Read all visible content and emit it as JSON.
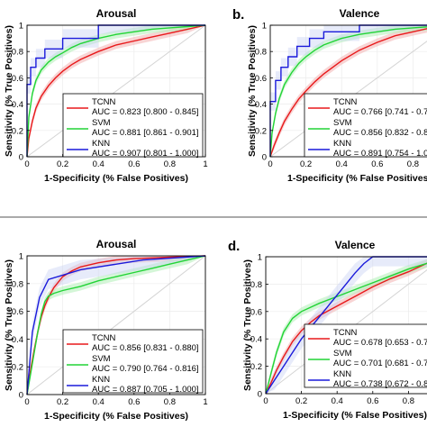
{
  "figure": {
    "colors": {
      "TCNN": "#e8191b",
      "SVM": "#22d436",
      "KNN": "#1a1adb",
      "TCNN_band": "#f4b7b7",
      "SVM_band": "#b7f0bd",
      "KNN_band": "#c9d2f5",
      "chance": "#d4d4d4"
    }
  },
  "chart_data": [
    {
      "type": "line",
      "panel_label": "",
      "title": "Arousal",
      "xlabel": "1-Specificity (% False Positives)",
      "ylabel": "Sensitivity (% True Positives)",
      "xlim": [
        0,
        1
      ],
      "ylim": [
        0,
        1
      ],
      "xticks": [
        "0",
        "0.2",
        "0.4",
        "0.6",
        "0.8",
        "1"
      ],
      "yticks": [
        "0",
        "0.2",
        "0.4",
        "0.6",
        "0.8",
        "1"
      ],
      "legend_position": "bottom-right",
      "series": [
        {
          "name": "TCNN",
          "auc": "AUC = 0.823 [0.800 - 0.845]",
          "x": [
            0,
            0.01,
            0.03,
            0.05,
            0.08,
            0.12,
            0.16,
            0.2,
            0.25,
            0.3,
            0.4,
            0.5,
            0.6,
            0.7,
            0.8,
            0.9,
            1
          ],
          "y": [
            0,
            0.14,
            0.27,
            0.37,
            0.46,
            0.54,
            0.6,
            0.65,
            0.7,
            0.74,
            0.8,
            0.85,
            0.88,
            0.91,
            0.94,
            0.97,
            1
          ]
        },
        {
          "name": "SVM",
          "auc": "AUC = 0.881 [0.861 - 0.901]",
          "x": [
            0,
            0.01,
            0.03,
            0.05,
            0.08,
            0.12,
            0.16,
            0.2,
            0.25,
            0.3,
            0.4,
            0.5,
            0.6,
            0.7,
            0.8,
            0.9,
            1
          ],
          "y": [
            0,
            0.3,
            0.48,
            0.58,
            0.66,
            0.72,
            0.76,
            0.79,
            0.83,
            0.86,
            0.9,
            0.93,
            0.95,
            0.97,
            0.98,
            0.99,
            1
          ]
        },
        {
          "name": "KNN",
          "auc": "AUC = 0.907 [0.801 - 1.000]",
          "x": [
            0,
            0,
            0.02,
            0.02,
            0.05,
            0.05,
            0.1,
            0.1,
            0.2,
            0.2,
            0.4,
            0.4,
            1
          ],
          "y": [
            0,
            0.55,
            0.55,
            0.68,
            0.68,
            0.75,
            0.75,
            0.82,
            0.82,
            0.9,
            0.9,
            1,
            1
          ]
        }
      ]
    },
    {
      "type": "line",
      "panel_label": "b.",
      "title": "Valence",
      "xlabel": "1-Specificity (% False Positives)",
      "ylabel": "Sensitivity (% True Positives)",
      "xlim": [
        0,
        1
      ],
      "ylim": [
        0,
        1
      ],
      "xticks": [
        "0",
        "0.2",
        "0.4",
        "0.6",
        "0.8",
        "1"
      ],
      "yticks": [
        "0",
        "0.2",
        "0.4",
        "0.6",
        "0.8",
        "1"
      ],
      "legend_position": "bottom-right",
      "series": [
        {
          "name": "TCNN",
          "auc": "AUC = 0.766 [0.741 - 0.7",
          "x": [
            0,
            0.02,
            0.05,
            0.08,
            0.12,
            0.16,
            0.2,
            0.25,
            0.3,
            0.4,
            0.5,
            0.6,
            0.7,
            0.8,
            0.9,
            1
          ],
          "y": [
            0,
            0.08,
            0.18,
            0.27,
            0.36,
            0.44,
            0.5,
            0.57,
            0.63,
            0.73,
            0.81,
            0.87,
            0.92,
            0.95,
            0.98,
            1
          ]
        },
        {
          "name": "SVM",
          "auc": "AUC = 0.856 [0.832 - 0.8",
          "x": [
            0,
            0.01,
            0.03,
            0.05,
            0.08,
            0.12,
            0.16,
            0.2,
            0.25,
            0.3,
            0.4,
            0.5,
            0.6,
            0.7,
            0.8,
            0.9,
            1
          ],
          "y": [
            0,
            0.18,
            0.33,
            0.44,
            0.55,
            0.64,
            0.71,
            0.76,
            0.81,
            0.85,
            0.9,
            0.93,
            0.95,
            0.97,
            0.98,
            0.99,
            1
          ]
        },
        {
          "name": "KNN",
          "auc": "AUC = 0.891 [0.754 - 1.0",
          "x": [
            0,
            0,
            0.03,
            0.03,
            0.06,
            0.06,
            0.1,
            0.1,
            0.15,
            0.15,
            0.22,
            0.22,
            0.3,
            0.3,
            0.5,
            0.5,
            1
          ],
          "y": [
            0,
            0.42,
            0.42,
            0.58,
            0.58,
            0.68,
            0.68,
            0.76,
            0.76,
            0.84,
            0.84,
            0.9,
            0.9,
            0.95,
            0.95,
            1,
            1
          ]
        }
      ]
    },
    {
      "type": "line",
      "panel_label": "",
      "title": "Arousal",
      "xlabel": "1-Specificity (% False Positives)",
      "ylabel": "Sensitivity (% True Positives)",
      "xlim": [
        0,
        1
      ],
      "ylim": [
        0,
        1
      ],
      "xticks": [
        "0",
        "0.2",
        "0.4",
        "0.6",
        "0.8",
        "1"
      ],
      "yticks": [
        "0",
        "0.2",
        "0.4",
        "0.6",
        "0.8",
        "1"
      ],
      "legend_position": "bottom-right",
      "series": [
        {
          "name": "TCNN",
          "auc": "AUC = 0.856 [0.831 - 0.880]",
          "x": [
            0,
            0.02,
            0.04,
            0.06,
            0.08,
            0.1,
            0.12,
            0.15,
            0.2,
            0.25,
            0.3,
            0.4,
            0.5,
            0.6,
            0.7,
            0.8,
            0.9,
            1
          ],
          "y": [
            0,
            0.18,
            0.32,
            0.45,
            0.56,
            0.64,
            0.7,
            0.77,
            0.85,
            0.89,
            0.92,
            0.95,
            0.97,
            0.98,
            0.985,
            0.99,
            0.995,
            1
          ]
        },
        {
          "name": "SVM",
          "auc": "AUC = 0.790 [0.764 - 0.816]",
          "x": [
            0,
            0.02,
            0.04,
            0.06,
            0.08,
            0.1,
            0.12,
            0.15,
            0.2,
            0.3,
            0.4,
            0.5,
            0.6,
            0.7,
            0.8,
            0.9,
            1
          ],
          "y": [
            0,
            0.15,
            0.3,
            0.45,
            0.58,
            0.67,
            0.71,
            0.73,
            0.75,
            0.78,
            0.82,
            0.85,
            0.88,
            0.91,
            0.94,
            0.97,
            1
          ]
        },
        {
          "name": "KNN",
          "auc": "AUC = 0.887 [0.705 - 1.000]",
          "x": [
            0,
            0.03,
            0.03,
            0.07,
            0.07,
            0.12,
            0.12,
            0.3,
            0.3,
            0.65,
            0.65,
            1
          ],
          "y": [
            0,
            0.45,
            0.45,
            0.7,
            0.7,
            0.83,
            0.83,
            0.9,
            0.9,
            0.97,
            0.97,
            1
          ]
        }
      ]
    },
    {
      "type": "line",
      "panel_label": "d.",
      "title": "Valence",
      "xlabel": "1-Specificity (% False Positives)",
      "ylabel": "Sensitivity (% True Positives)",
      "xlim": [
        0,
        1
      ],
      "ylim": [
        0,
        1
      ],
      "xticks": [
        "0",
        "0.2",
        "0.4",
        "0.6",
        "0.8",
        "1"
      ],
      "yticks": [
        "0",
        "0.2",
        "0.4",
        "0.6",
        "0.8",
        "1"
      ],
      "legend_position": "bottom-right",
      "series": [
        {
          "name": "TCNN",
          "auc": "AUC = 0.678 [0.653 - 0.7",
          "x": [
            0,
            0.03,
            0.06,
            0.1,
            0.15,
            0.2,
            0.25,
            0.3,
            0.4,
            0.5,
            0.6,
            0.7,
            0.8,
            0.9,
            1
          ],
          "y": [
            0,
            0.08,
            0.17,
            0.27,
            0.38,
            0.46,
            0.52,
            0.57,
            0.64,
            0.71,
            0.78,
            0.84,
            0.89,
            0.95,
            1
          ]
        },
        {
          "name": "SVM",
          "auc": "AUC = 0.701 [0.681 - 0.7",
          "x": [
            0,
            0.03,
            0.06,
            0.1,
            0.15,
            0.2,
            0.25,
            0.3,
            0.4,
            0.5,
            0.6,
            0.7,
            0.8,
            0.9,
            1
          ],
          "y": [
            0,
            0.15,
            0.3,
            0.45,
            0.55,
            0.6,
            0.63,
            0.66,
            0.71,
            0.76,
            0.81,
            0.86,
            0.91,
            0.95,
            1
          ]
        },
        {
          "name": "KNN",
          "auc": "AUC = 0.738 [0.672 - 0.8",
          "x": [
            0,
            0.05,
            0.1,
            0.15,
            0.2,
            0.25,
            0.3,
            0.35,
            0.4,
            0.45,
            0.5,
            0.55,
            0.6,
            0.7,
            0.8,
            0.9,
            1
          ],
          "y": [
            0,
            0.1,
            0.2,
            0.3,
            0.4,
            0.48,
            0.56,
            0.64,
            0.72,
            0.8,
            0.88,
            0.95,
            1,
            1,
            1,
            1,
            1
          ]
        }
      ]
    }
  ]
}
